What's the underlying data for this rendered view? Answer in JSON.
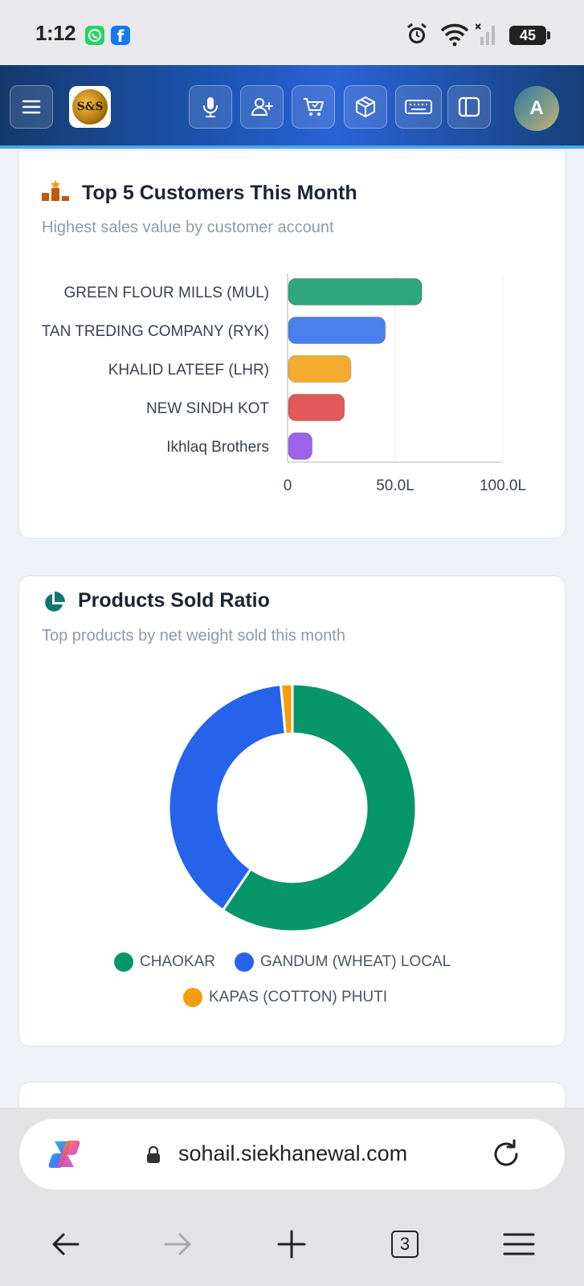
{
  "status_bar": {
    "time": "1:12",
    "battery": "45",
    "icons": [
      "whatsapp-icon",
      "facebook-icon",
      "alarm-icon",
      "wifi-icon",
      "signal-icon",
      "battery-icon"
    ]
  },
  "header": {
    "logo_text": "S&S",
    "avatar_initial": "A",
    "buttons": [
      "menu-icon",
      "microphone-icon",
      "add-user-icon",
      "cart-icon",
      "box-icon",
      "keyboard-icon",
      "sidebar-icon"
    ]
  },
  "customers_card": {
    "title": "Top 5 Customers This Month",
    "subtitle": "Highest sales value by customer account"
  },
  "products_card": {
    "title": "Products Sold Ratio",
    "subtitle": "Top products by net weight sold this month"
  },
  "browser": {
    "url": "sohail.siekhanewal.com",
    "tab_count": "3"
  },
  "chart_data": [
    {
      "type": "bar",
      "orientation": "horizontal",
      "categories": [
        "GREEN FLOUR MILLS (MUL)",
        "TAN TREDING COMPANY (RYK)",
        "KHALID LATEEF (LHR)",
        "NEW SINDH KOT",
        "Ikhlaq Brothers"
      ],
      "values": [
        62,
        45,
        29,
        26,
        11
      ],
      "unit": "L",
      "xlim": [
        0,
        100
      ],
      "xticks": [
        "0",
        "50.0L",
        "100.0L"
      ],
      "colors": [
        "#2fa67e",
        "#4a80ec",
        "#f5ab2f",
        "#e35858",
        "#9c62ec"
      ],
      "grid": true
    },
    {
      "type": "pie",
      "style": "donut",
      "categories": [
        "CHAOKAR",
        "GANDUM (WHEAT) LOCAL",
        "KAPAS (COTTON) PHUTI"
      ],
      "values": [
        59.5,
        39,
        1.5
      ],
      "colors": [
        "#079669",
        "#2563eb",
        "#f59e0b"
      ],
      "legend": "bottom"
    }
  ]
}
